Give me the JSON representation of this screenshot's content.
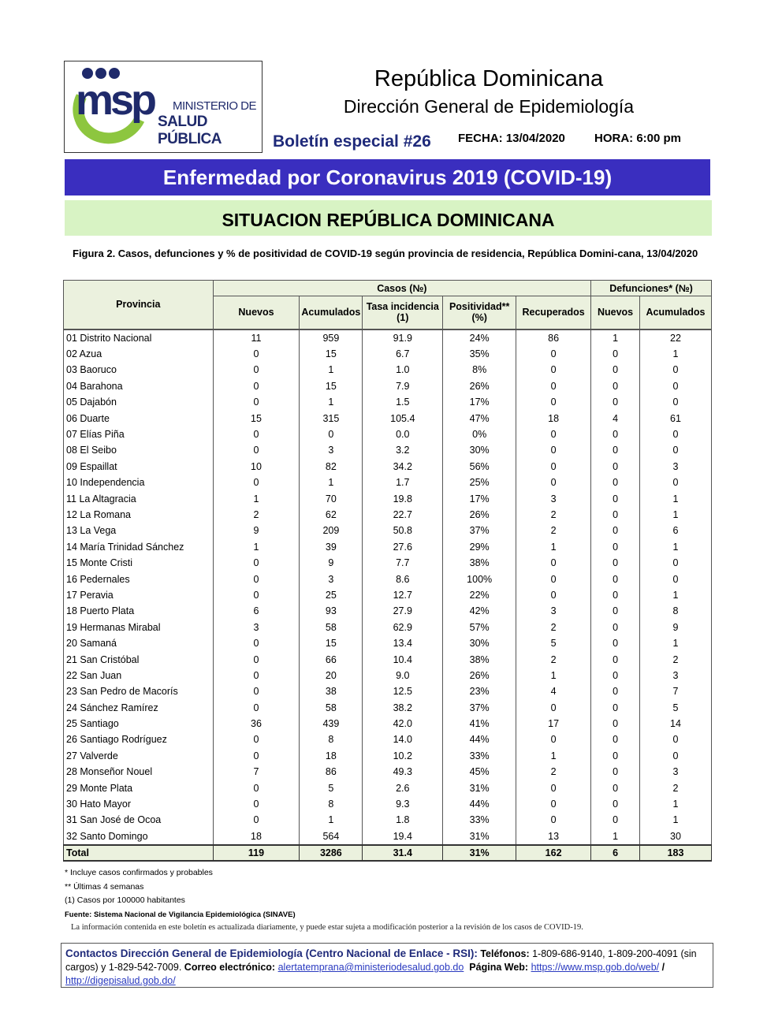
{
  "header": {
    "logo": {
      "mark": "msp",
      "line1": "MINISTERIO DE",
      "line2": "SALUD PÚBLICA"
    },
    "country": "República Dominicana",
    "department": "Dirección General de Epidemiología",
    "bulletin": "Boletín especial #26",
    "fecha": "FECHA: 13/04/2020",
    "hora": "HORA: 6:00 pm",
    "banner": "Enfermedad por Coronavirus 2019 (COVID-19)",
    "subtitle": "SITUACION REPÚBLICA DOMINICANA",
    "colors": {
      "banner": "#3a2ebf",
      "subtitle_bg": "#d8f3c4",
      "table_header": "#ebf1de"
    }
  },
  "figure_caption": "Figura 2. Casos, defunciones y % de positividad de COVID-19 según provincia de residencia, República Domini-cana, 13/04/2020",
  "table": {
    "group_headers": {
      "provincia": "Provincia",
      "casos": "Casos (№)",
      "defunciones": "Defunciones* (№)"
    },
    "columns": [
      "Nuevos",
      "Acumulados",
      "Tasa incidencia (1)",
      "Positividad** (%)",
      "Recuperados",
      "Nuevos",
      "Acumulados"
    ],
    "rows": [
      [
        "01 Distrito Nacional",
        "11",
        "959",
        "91.9",
        "24%",
        "86",
        "1",
        "22"
      ],
      [
        "02 Azua",
        "0",
        "15",
        "6.7",
        "35%",
        "0",
        "0",
        "1"
      ],
      [
        "03 Baoruco",
        "0",
        "1",
        "1.0",
        "8%",
        "0",
        "0",
        "0"
      ],
      [
        "04 Barahona",
        "0",
        "15",
        "7.9",
        "26%",
        "0",
        "0",
        "0"
      ],
      [
        "05 Dajabón",
        "0",
        "1",
        "1.5",
        "17%",
        "0",
        "0",
        "0"
      ],
      [
        "06 Duarte",
        "15",
        "315",
        "105.4",
        "47%",
        "18",
        "4",
        "61"
      ],
      [
        "07 Elías Piña",
        "0",
        "0",
        "0.0",
        "0%",
        "0",
        "0",
        "0"
      ],
      [
        "08 El Seibo",
        "0",
        "3",
        "3.2",
        "30%",
        "0",
        "0",
        "0"
      ],
      [
        "09 Espaillat",
        "10",
        "82",
        "34.2",
        "56%",
        "0",
        "0",
        "3"
      ],
      [
        "10 Independencia",
        "0",
        "1",
        "1.7",
        "25%",
        "0",
        "0",
        "0"
      ],
      [
        "11 La Altagracia",
        "1",
        "70",
        "19.8",
        "17%",
        "3",
        "0",
        "1"
      ],
      [
        "12 La Romana",
        "2",
        "62",
        "22.7",
        "26%",
        "2",
        "0",
        "1"
      ],
      [
        "13 La Vega",
        "9",
        "209",
        "50.8",
        "37%",
        "2",
        "0",
        "6"
      ],
      [
        "14 María Trinidad Sánchez",
        "1",
        "39",
        "27.6",
        "29%",
        "1",
        "0",
        "1"
      ],
      [
        "15 Monte Cristi",
        "0",
        "9",
        "7.7",
        "38%",
        "0",
        "0",
        "0"
      ],
      [
        "16 Pedernales",
        "0",
        "3",
        "8.6",
        "100%",
        "0",
        "0",
        "0"
      ],
      [
        "17 Peravia",
        "0",
        "25",
        "12.7",
        "22%",
        "0",
        "0",
        "1"
      ],
      [
        "18 Puerto Plata",
        "6",
        "93",
        "27.9",
        "42%",
        "3",
        "0",
        "8"
      ],
      [
        "19 Hermanas Mirabal",
        "3",
        "58",
        "62.9",
        "57%",
        "2",
        "0",
        "9"
      ],
      [
        "20 Samaná",
        "0",
        "15",
        "13.4",
        "30%",
        "5",
        "0",
        "1"
      ],
      [
        "21 San Cristóbal",
        "0",
        "66",
        "10.4",
        "38%",
        "2",
        "0",
        "2"
      ],
      [
        "22 San Juan",
        "0",
        "20",
        "9.0",
        "26%",
        "1",
        "0",
        "3"
      ],
      [
        "23 San Pedro de Macorís",
        "0",
        "38",
        "12.5",
        "23%",
        "4",
        "0",
        "7"
      ],
      [
        "24 Sánchez Ramírez",
        "0",
        "58",
        "38.2",
        "37%",
        "0",
        "0",
        "5"
      ],
      [
        "25 Santiago",
        "36",
        "439",
        "42.0",
        "41%",
        "17",
        "0",
        "14"
      ],
      [
        "26 Santiago Rodríguez",
        "0",
        "8",
        "14.0",
        "44%",
        "0",
        "0",
        "0"
      ],
      [
        "27 Valverde",
        "0",
        "18",
        "10.2",
        "33%",
        "1",
        "0",
        "0"
      ],
      [
        "28 Monseñor Nouel",
        "7",
        "86",
        "49.3",
        "45%",
        "2",
        "0",
        "3"
      ],
      [
        "29 Monte Plata",
        "0",
        "5",
        "2.6",
        "31%",
        "0",
        "0",
        "2"
      ],
      [
        "30 Hato Mayor",
        "0",
        "8",
        "9.3",
        "44%",
        "0",
        "0",
        "1"
      ],
      [
        "31 San José de Ocoa",
        "0",
        "1",
        "1.8",
        "33%",
        "0",
        "0",
        "1"
      ],
      [
        "32 Santo Domingo",
        "18",
        "564",
        "19.4",
        "31%",
        "13",
        "1",
        "30"
      ]
    ],
    "total": [
      "Total",
      "119",
      "3286",
      "31.4",
      "31%",
      "162",
      "6",
      "183"
    ]
  },
  "notes": {
    "n1": "* Incluye casos confirmados y probables",
    "n2": "** Últimas 4 semanas",
    "n3": "(1) Casos por 100000 habitantes",
    "source": "Fuente: Sistema Nacional de Vigilancia Epidemiológica (SINAVE)",
    "info": "La información contenida en este boletín es actualizada diariamente, y puede estar sujeta a modificación posterior a la revisión de los casos de COVID-19."
  },
  "contact": {
    "title": "Contactos Dirección General de Epidemiología (Centro Nacional de Enlace - RSI):",
    "phones_label": "Teléfonos:",
    "phones": "1-809-686-9140, 1-809-200-4091 (sin cargos) y 1-829-542-7009.",
    "email_label": "Correo electrónico:",
    "email": "alertatemprana@ministeriodesalud.gob.do",
    "web_label": "Página Web:",
    "web1": "https://www.msp.gob.do/web/",
    "sep": "/",
    "web2": "http://digepisalud.gob.do/"
  }
}
